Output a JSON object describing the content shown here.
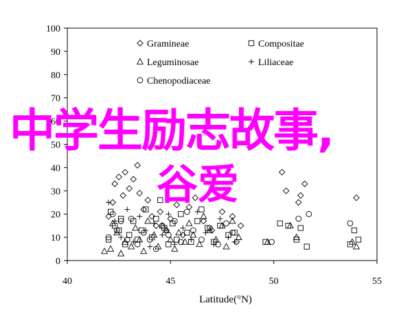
{
  "chart_data": {
    "type": "scatter",
    "xlabel": "Latitude(°N)",
    "ylabel": "",
    "xlim": [
      40,
      55
    ],
    "ylim": [
      0,
      100
    ],
    "xticks": [
      40,
      45,
      50,
      55
    ],
    "yticks": [
      0,
      10,
      20,
      30,
      40,
      50,
      60,
      70,
      80,
      90,
      100
    ],
    "grid": false,
    "legend_position": "top-center",
    "series": [
      {
        "name": "Gramineae",
        "marker": "diamond",
        "points": [
          [
            42.0,
            19
          ],
          [
            42.2,
            25
          ],
          [
            42.3,
            33
          ],
          [
            42.5,
            36
          ],
          [
            42.7,
            28
          ],
          [
            42.8,
            38
          ],
          [
            43.0,
            31
          ],
          [
            43.2,
            35
          ],
          [
            43.4,
            41
          ],
          [
            43.5,
            29
          ],
          [
            43.7,
            22
          ],
          [
            43.9,
            26
          ],
          [
            44.1,
            19
          ],
          [
            44.3,
            15
          ],
          [
            44.5,
            21
          ],
          [
            44.8,
            13
          ],
          [
            45.0,
            18
          ],
          [
            45.3,
            24
          ],
          [
            45.6,
            11
          ],
          [
            45.9,
            23
          ],
          [
            46.2,
            27
          ],
          [
            46.6,
            17
          ],
          [
            47.0,
            13
          ],
          [
            47.5,
            21
          ],
          [
            48.0,
            19
          ],
          [
            48.2,
            8
          ],
          [
            48.4,
            15
          ],
          [
            50.4,
            38
          ],
          [
            50.6,
            30
          ],
          [
            51.2,
            25
          ],
          [
            51.3,
            28
          ],
          [
            51.5,
            33
          ],
          [
            54.0,
            27
          ]
        ]
      },
      {
        "name": "Compositae",
        "marker": "square",
        "points": [
          [
            42.0,
            9
          ],
          [
            42.1,
            21
          ],
          [
            42.3,
            15
          ],
          [
            42.5,
            13
          ],
          [
            42.6,
            18
          ],
          [
            42.8,
            7
          ],
          [
            43.0,
            11
          ],
          [
            43.2,
            17
          ],
          [
            43.4,
            9
          ],
          [
            43.6,
            13
          ],
          [
            43.8,
            22
          ],
          [
            44.1,
            10
          ],
          [
            44.3,
            18
          ],
          [
            44.5,
            26
          ],
          [
            44.7,
            14
          ],
          [
            44.9,
            7
          ],
          [
            45.1,
            16
          ],
          [
            45.3,
            9
          ],
          [
            45.5,
            20
          ],
          [
            45.8,
            12
          ],
          [
            46.0,
            8
          ],
          [
            46.3,
            17
          ],
          [
            46.5,
            22
          ],
          [
            46.8,
            14
          ],
          [
            47.1,
            8
          ],
          [
            47.4,
            15
          ],
          [
            47.8,
            11
          ],
          [
            48.1,
            12
          ],
          [
            49.6,
            8
          ],
          [
            50.3,
            16
          ],
          [
            50.7,
            15
          ],
          [
            51.1,
            9
          ],
          [
            51.3,
            14
          ],
          [
            51.6,
            6
          ],
          [
            53.7,
            7
          ],
          [
            53.9,
            13
          ],
          [
            54.1,
            9
          ]
        ]
      },
      {
        "name": "Leguminosae",
        "marker": "triangle",
        "points": [
          [
            41.8,
            4
          ],
          [
            42.1,
            5
          ],
          [
            42.2,
            16
          ],
          [
            42.4,
            12
          ],
          [
            42.6,
            3
          ],
          [
            42.8,
            8
          ],
          [
            43.1,
            6
          ],
          [
            43.3,
            14
          ],
          [
            43.5,
            9
          ],
          [
            43.7,
            4
          ],
          [
            43.9,
            17
          ],
          [
            44.2,
            11
          ],
          [
            44.4,
            6
          ],
          [
            44.6,
            15
          ],
          [
            44.8,
            13
          ],
          [
            45.0,
            9
          ],
          [
            45.2,
            5
          ],
          [
            45.4,
            12
          ],
          [
            45.7,
            8
          ],
          [
            45.9,
            16
          ],
          [
            46.1,
            11
          ],
          [
            46.4,
            7
          ],
          [
            46.6,
            19
          ],
          [
            46.9,
            13
          ],
          [
            47.2,
            9
          ],
          [
            47.5,
            15
          ],
          [
            47.7,
            6
          ],
          [
            48.0,
            17
          ],
          [
            48.3,
            10
          ],
          [
            49.7,
            8
          ],
          [
            50.8,
            15
          ],
          [
            51.1,
            10
          ],
          [
            53.8,
            8
          ],
          [
            54.0,
            6
          ]
        ]
      },
      {
        "name": "Liliaceae",
        "marker": "plus",
        "points": [
          [
            42.0,
            25
          ],
          [
            42.3,
            17
          ],
          [
            42.6,
            10
          ],
          [
            42.9,
            22
          ],
          [
            43.2,
            8
          ],
          [
            43.5,
            19
          ],
          [
            43.8,
            13
          ],
          [
            44.0,
            6
          ],
          [
            44.2,
            16
          ],
          [
            44.6,
            11
          ],
          [
            44.9,
            20
          ],
          [
            45.2,
            7
          ],
          [
            45.6,
            14
          ],
          [
            46.0,
            9
          ],
          [
            46.3,
            21
          ],
          [
            46.7,
            12
          ],
          [
            47.1,
            7
          ],
          [
            47.4,
            18
          ],
          [
            47.8,
            10
          ],
          [
            48.1,
            8
          ]
        ]
      },
      {
        "name": "Chenopodiaceae",
        "marker": "circle",
        "points": [
          [
            42.0,
            10
          ],
          [
            42.2,
            20
          ],
          [
            42.4,
            13
          ],
          [
            42.6,
            17
          ],
          [
            42.9,
            9
          ],
          [
            43.1,
            18
          ],
          [
            43.4,
            7
          ],
          [
            43.7,
            12
          ],
          [
            44.0,
            9
          ],
          [
            44.3,
            5
          ],
          [
            44.6,
            15
          ],
          [
            44.9,
            11
          ],
          [
            45.2,
            17
          ],
          [
            45.5,
            8
          ],
          [
            45.8,
            21
          ],
          [
            46.1,
            13
          ],
          [
            46.5,
            9
          ],
          [
            46.9,
            14
          ],
          [
            47.3,
            7
          ],
          [
            47.7,
            16
          ],
          [
            48.0,
            12
          ],
          [
            49.9,
            8
          ],
          [
            51.2,
            18
          ],
          [
            51.7,
            20
          ],
          [
            53.7,
            16
          ]
        ]
      }
    ]
  },
  "overlay": {
    "line1": "中学生励志故事,",
    "line2": "谷爱"
  }
}
